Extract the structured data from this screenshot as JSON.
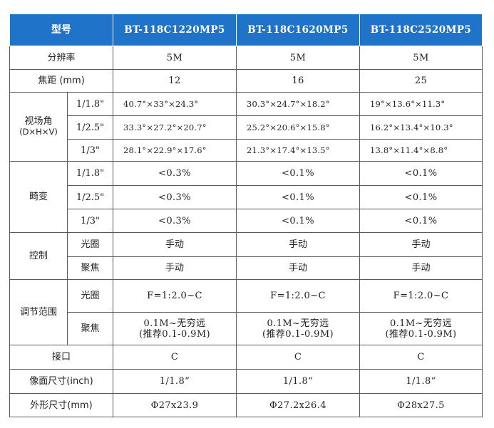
{
  "header": {
    "model_label": "型号",
    "models": [
      "BT-118C1220MP5",
      "BT-118C1620MP5",
      "BT-118C2520MP5"
    ]
  },
  "rows": {
    "resolution": {
      "label": "分辨率",
      "values": [
        "5M",
        "5M",
        "5M"
      ]
    },
    "focal_length": {
      "label": "焦距 (mm)",
      "values": [
        "12",
        "16",
        "25"
      ]
    },
    "fov": {
      "label_line1": "视场角",
      "label_line2": "(D×H×V)",
      "sensors": [
        {
          "size": "1/1.8\"",
          "values": [
            "40.7°×33°×24.3°",
            "30.3°×24.7°×18.2°",
            "19°×13.6°×11.3°"
          ]
        },
        {
          "size": "1/2.5\"",
          "values": [
            "33.3°×27.2°×20.7°",
            "25.2°×20.6°×15.8°",
            "16.2°×13.4°×10.3°"
          ]
        },
        {
          "size": "1/3\"",
          "values": [
            "28.1°×22.9°×17.6°",
            "21.3°×17.4°×13.5°",
            "13.8°×11.4°×8.8°"
          ]
        }
      ]
    },
    "distortion": {
      "label": "畸变",
      "sensors": [
        {
          "size": "1/1.8\"",
          "values": [
            "<0.3%",
            "<0.1%",
            "<0.1%"
          ]
        },
        {
          "size": "1/2.5\"",
          "values": [
            "<0.3%",
            "<0.1%",
            "<0.1%"
          ]
        },
        {
          "size": "1/3\"",
          "values": [
            "<0.3%",
            "<0.1%",
            "<0.1%"
          ]
        }
      ]
    },
    "control": {
      "label": "控制",
      "items": [
        {
          "name": "光圈",
          "values": [
            "手动",
            "手动",
            "手动"
          ]
        },
        {
          "name": "聚焦",
          "values": [
            "手动",
            "手动",
            "手动"
          ]
        }
      ]
    },
    "adjust_range": {
      "label": "调节范围",
      "items": [
        {
          "name": "光圈",
          "values": [
            "F=1:2.0~C",
            "F=1:2.0~C",
            "F=1:2.0~C"
          ]
        },
        {
          "name": "聚焦",
          "values_line1": [
            "0.1M~无穷远",
            "0.1M~无穷远",
            "0.1M~无穷远"
          ],
          "values_line2": [
            "(推荐0.1-0.9M)",
            "(推荐0.1-0.9M)",
            "(推荐0.1-0.9M)"
          ]
        }
      ]
    },
    "mount": {
      "label": "接口",
      "values": [
        "C",
        "C",
        "C"
      ]
    },
    "image_size": {
      "label": "像面尺寸(inch)",
      "values": [
        "1/1.8“",
        "1/1.8“",
        "1/1.8“"
      ]
    },
    "dimensions": {
      "label": "外形尺寸(mm)",
      "values": [
        "Φ27x23.9",
        "Φ27.2x26.4",
        "Φ28x27.5"
      ]
    }
  }
}
